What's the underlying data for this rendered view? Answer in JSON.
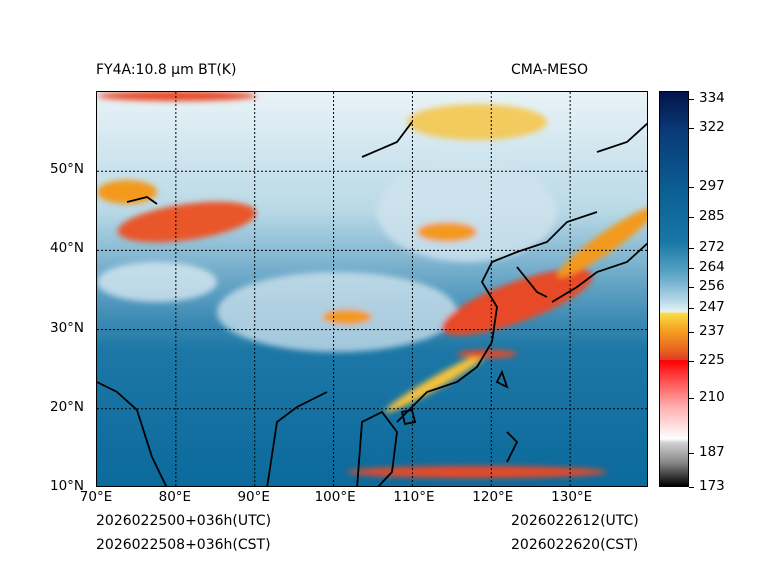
{
  "header": {
    "left_title": "FY4A:10.8 µm BT(K)",
    "right_title": "CMA-MESO"
  },
  "map": {
    "lon_ticks": [
      "70°E",
      "80°E",
      "90°E",
      "100°E",
      "110°E",
      "120°E",
      "130°E"
    ],
    "lat_ticks": [
      "10°N",
      "20°N",
      "30°N",
      "40°N",
      "50°N"
    ],
    "lon_range": [
      70,
      140
    ],
    "lat_range": [
      10,
      60
    ],
    "colors": {
      "ocean": "#0b6a9c",
      "cloud_cold": "#f39a1f",
      "cloud_warm": "#e84a25",
      "cloud_white": "#e8f2f7"
    }
  },
  "colorbar": {
    "label_values": [
      "334",
      "322",
      "297",
      "285",
      "272",
      "264",
      "256",
      "247",
      "237",
      "225",
      "210",
      "187",
      "173"
    ]
  },
  "footer": {
    "init_utc": "2026022500+036h(UTC)",
    "init_cst": "2026022508+036h(CST)",
    "valid_utc": "2026022612(UTC)",
    "valid_cst": "2026022620(CST)"
  }
}
